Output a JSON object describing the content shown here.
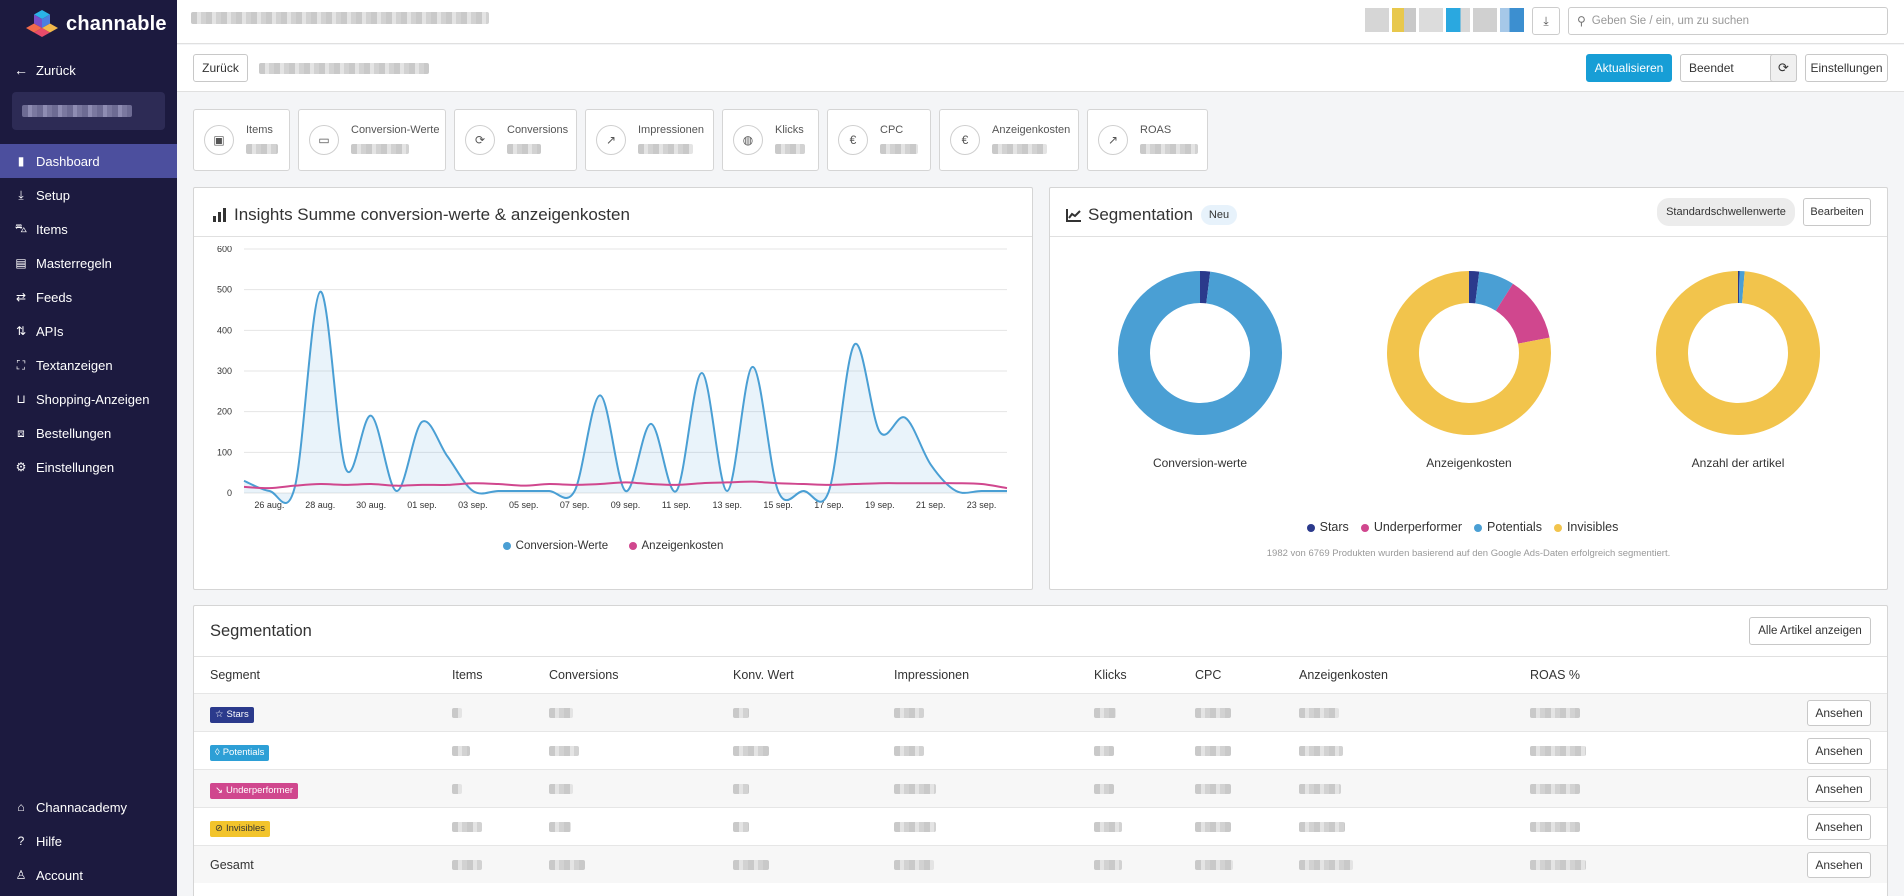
{
  "brand": {
    "name": "channable"
  },
  "sidebar": {
    "back_label": "Zurück",
    "items": [
      {
        "label": "Dashboard",
        "icon": "chart-bar-icon",
        "active": true
      },
      {
        "label": "Setup",
        "icon": "download-icon"
      },
      {
        "label": "Items",
        "icon": "cart-icon"
      },
      {
        "label": "Masterregeln",
        "icon": "clipboard-icon"
      },
      {
        "label": "Feeds",
        "icon": "arrows-icon"
      },
      {
        "label": "APIs",
        "icon": "sort-arrows-icon"
      },
      {
        "label": "Textanzeigen",
        "icon": "expand-icon"
      },
      {
        "label": "Shopping-Anzeigen",
        "icon": "bag-icon"
      },
      {
        "label": "Bestellungen",
        "icon": "box-icon"
      },
      {
        "label": "Einstellungen",
        "icon": "gear-icon"
      }
    ],
    "bottom_items": [
      {
        "label": "Channacademy",
        "icon": "graduation-icon"
      },
      {
        "label": "Hilfe",
        "icon": "question-icon"
      },
      {
        "label": "Account",
        "icon": "user-icon"
      }
    ]
  },
  "topbar": {
    "search_placeholder": "Geben Sie / ein, um zu suchen"
  },
  "header": {
    "back_button": "Zurück",
    "refresh_button": "Aktualisieren",
    "status_select": "Beendet",
    "settings_button": "Einstellungen"
  },
  "metrics": [
    {
      "label": "Items",
      "icon": "briefcase-icon"
    },
    {
      "label": "Conversion-Werte",
      "icon": "money-icon"
    },
    {
      "label": "Conversions",
      "icon": "refresh-icon"
    },
    {
      "label": "Impressionen",
      "icon": "trend-icon"
    },
    {
      "label": "Klicks",
      "icon": "mouse-icon"
    },
    {
      "label": "CPC",
      "icon": "euro-icon"
    },
    {
      "label": "Anzeigenkosten",
      "icon": "euro-icon"
    },
    {
      "label": "ROAS",
      "icon": "trend-icon"
    }
  ],
  "insights": {
    "title": "Insights Summe conversion-werte & anzeigenkosten"
  },
  "chart_data": {
    "type": "line",
    "x": [
      "25 aug.",
      "26 aug.",
      "27 aug.",
      "28 aug.",
      "29 aug.",
      "30 aug.",
      "31 aug.",
      "01 sep.",
      "02 sep.",
      "03 sep.",
      "04 sep.",
      "05 sep.",
      "06 sep.",
      "07 sep.",
      "08 sep.",
      "09 sep.",
      "10 sep.",
      "11 sep.",
      "12 sep.",
      "13 sep.",
      "14 sep.",
      "15 sep.",
      "16 sep.",
      "17 sep.",
      "18 sep.",
      "19 sep.",
      "20 sep.",
      "21 sep.",
      "22 sep.",
      "23 sep.",
      "24 sep."
    ],
    "tick_labels": [
      "26 aug.",
      "28 aug.",
      "30 aug.",
      "01 sep.",
      "03 sep.",
      "05 sep.",
      "07 sep.",
      "09 sep.",
      "11 sep.",
      "13 sep.",
      "15 sep.",
      "17 sep.",
      "19 sep.",
      "21 sep.",
      "23 sep."
    ],
    "series": [
      {
        "name": "Conversion-Werte",
        "color": "#4a9fd4",
        "values": [
          30,
          5,
          15,
          495,
          60,
          190,
          5,
          175,
          90,
          5,
          5,
          5,
          5,
          5,
          240,
          5,
          170,
          5,
          295,
          5,
          310,
          5,
          5,
          5,
          365,
          150,
          185,
          70,
          5,
          5,
          5
        ]
      },
      {
        "name": "Anzeigenkosten",
        "color": "#d0478e",
        "values": [
          15,
          12,
          18,
          22,
          20,
          22,
          18,
          20,
          20,
          24,
          22,
          18,
          22,
          20,
          22,
          26,
          22,
          20,
          24,
          26,
          28,
          24,
          22,
          20,
          22,
          24,
          24,
          24,
          24,
          22,
          12
        ]
      }
    ],
    "ylim": [
      0,
      600
    ],
    "yticks": [
      0,
      100,
      200,
      300,
      400,
      500,
      600
    ],
    "grid": true,
    "legend": "bottom"
  },
  "segmentation_chart": {
    "title": "Segmentation",
    "new_badge": "Neu",
    "default_thresholds_button": "Standardschwellenwerte",
    "edit_button": "Bearbeiten",
    "donuts": [
      {
        "label": "Conversion-werte",
        "values": {
          "Stars": 0.02,
          "Underperformer": 0.0,
          "Potentials": 0.98,
          "Invisibles": 0.0
        }
      },
      {
        "label": "Anzeigenkosten",
        "values": {
          "Stars": 0.02,
          "Underperformer": 0.13,
          "Potentials": 0.07,
          "Invisibles": 0.78
        }
      },
      {
        "label": "Anzahl der artikel",
        "values": {
          "Stars": 0.003,
          "Underperformer": 0.0,
          "Potentials": 0.01,
          "Invisibles": 0.987
        }
      }
    ],
    "legend": [
      {
        "name": "Stars",
        "color": "#2b3a8c"
      },
      {
        "name": "Underperformer",
        "color": "#d0478e"
      },
      {
        "name": "Potentials",
        "color": "#4a9fd4"
      },
      {
        "name": "Invisibles",
        "color": "#f2c44c"
      }
    ],
    "footnote": "1982 von 6769 Produkten wurden basierend auf den Google Ads-Daten erfolgreich segmentiert."
  },
  "segmentation_table": {
    "title": "Segmentation",
    "show_all_button": "Alle Artikel anzeigen",
    "columns": [
      "Segment",
      "Items",
      "Conversions",
      "Konv. Wert",
      "Impressionen",
      "Klicks",
      "CPC",
      "Anzeigenkosten",
      "ROAS %"
    ],
    "rows": [
      {
        "segment": "Stars",
        "color": "#2b3a8c",
        "icon": "star-icon"
      },
      {
        "segment": "Potentials",
        "color": "#2d9fd6",
        "icon": "bulb-icon"
      },
      {
        "segment": "Underperformer",
        "color": "#d0478e",
        "icon": "chart-down-icon"
      },
      {
        "segment": "Invisibles",
        "color": "#f2c42c",
        "icon": "eye-slash-icon"
      }
    ],
    "total_label": "Gesamt",
    "view_button": "Ansehen"
  }
}
